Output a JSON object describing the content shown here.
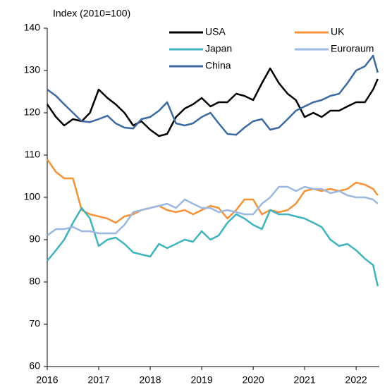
{
  "chart_data": {
    "type": "line",
    "y_label": "Index (2010=100)",
    "x": [
      2016,
      2016.17,
      2016.33,
      2016.5,
      2016.67,
      2016.83,
      2017,
      2017.17,
      2017.33,
      2017.5,
      2017.67,
      2017.83,
      2018,
      2018.17,
      2018.33,
      2018.5,
      2018.67,
      2018.83,
      2019,
      2019.17,
      2019.33,
      2019.5,
      2019.67,
      2019.83,
      2020,
      2020.17,
      2020.33,
      2020.5,
      2020.67,
      2020.83,
      2021,
      2021.17,
      2021.33,
      2021.5,
      2021.67,
      2021.83,
      2022,
      2022.17,
      2022.33,
      2022.42
    ],
    "series": [
      {
        "name": "USA",
        "color": "#000000",
        "values": [
          122,
          119,
          117,
          118.5,
          118,
          120,
          125.5,
          123.5,
          122,
          120,
          117,
          118,
          116,
          114.5,
          115,
          119,
          121,
          122,
          123.5,
          121.5,
          122.5,
          122.5,
          124.5,
          124,
          123,
          127,
          130.5,
          127,
          124.5,
          123,
          119,
          120,
          119,
          120.5,
          120.5,
          121.5,
          122.5,
          122.5,
          125.5,
          128
        ]
      },
      {
        "name": "UK",
        "color": "#f4923a",
        "values": [
          109,
          106,
          104.5,
          104.5,
          97,
          96,
          95.5,
          95,
          94,
          95.5,
          96,
          97,
          97.5,
          98,
          97,
          96.5,
          97,
          96,
          97,
          98,
          97.5,
          95,
          97,
          99.5,
          99.5,
          96,
          97,
          96.5,
          97,
          98.5,
          101.5,
          102,
          101.5,
          102,
          101.5,
          102,
          103.5,
          103,
          102,
          100.5
        ]
      },
      {
        "name": "Japan",
        "color": "#3fb4bc",
        "values": [
          85,
          87.5,
          90,
          94,
          97.5,
          95,
          88.5,
          90,
          90.5,
          89,
          87,
          86.5,
          86,
          89,
          88,
          89,
          90,
          89.5,
          92,
          90,
          91,
          94,
          96,
          95,
          93.5,
          92.5,
          97,
          96,
          96,
          95.5,
          95,
          94,
          93,
          90,
          88.5,
          89,
          87.5,
          85.5,
          84,
          79
        ]
      },
      {
        "name": "Euroraum",
        "color": "#9bb8e0",
        "values": [
          91,
          92.5,
          92.5,
          93,
          92,
          92,
          91.5,
          91.5,
          91.5,
          93.5,
          96.5,
          97,
          97.5,
          98,
          98.5,
          97.5,
          99.5,
          98.5,
          97.5,
          97.5,
          96.5,
          97,
          96.5,
          96,
          96,
          98.5,
          100,
          102.5,
          102.5,
          101.5,
          102.5,
          102,
          102,
          101,
          101.5,
          100.5,
          100,
          100,
          99.5,
          98.5
        ]
      },
      {
        "name": "China",
        "color": "#3c6aa0",
        "values": [
          125.5,
          124,
          122,
          120,
          118,
          117.8,
          118.5,
          119.3,
          117.5,
          116.5,
          116.3,
          118.5,
          119,
          120.5,
          122.5,
          117.5,
          117,
          117.5,
          119,
          120,
          117.5,
          115,
          114.8,
          116.5,
          118,
          118.5,
          116,
          116.5,
          118.5,
          120.5,
          121.5,
          122.5,
          123,
          124,
          124.5,
          127,
          130,
          131,
          133.5,
          129.5
        ]
      }
    ],
    "xlim": [
      2016,
      2022.45
    ],
    "xticks": [
      2016,
      2017,
      2018,
      2019,
      2020,
      2021,
      2022
    ],
    "ylim": [
      60,
      140
    ],
    "yticks": [
      60,
      70,
      80,
      90,
      100,
      110,
      120,
      130,
      140
    ],
    "grid": false
  }
}
